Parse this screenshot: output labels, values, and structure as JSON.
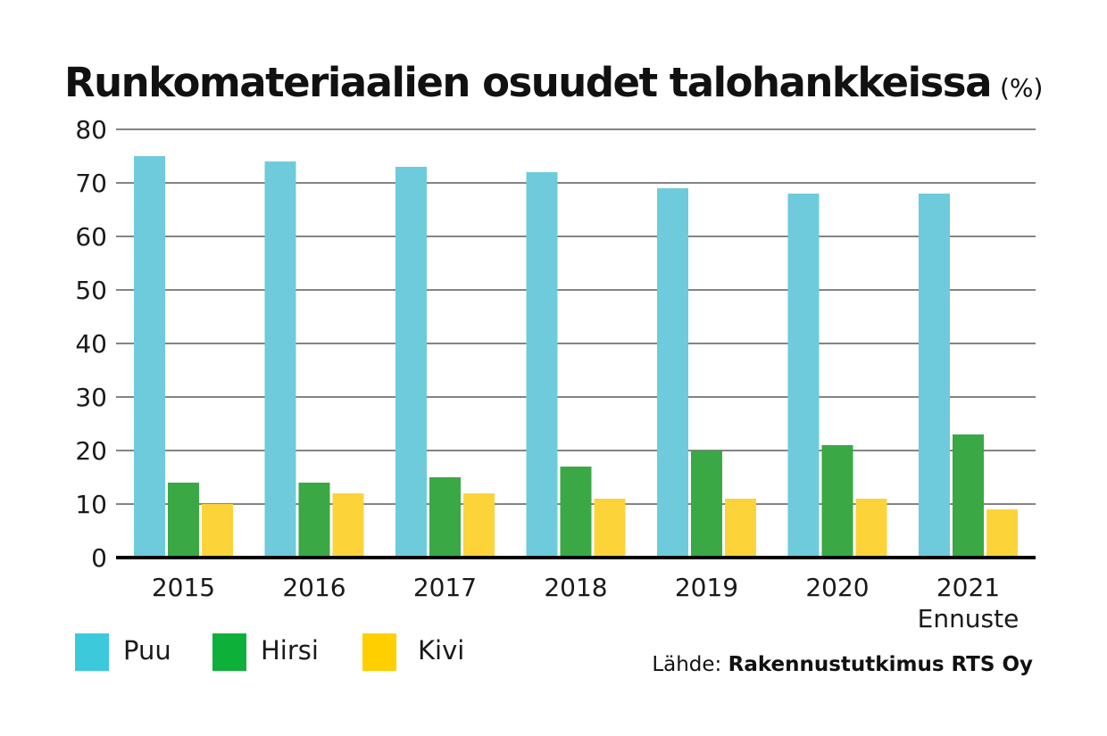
{
  "title": "Runkomateriaalien osuudet talohankkeissa",
  "title_unit": "(%)",
  "chart_data": {
    "type": "bar",
    "categories": [
      "2015",
      "2016",
      "2017",
      "2018",
      "2019",
      "2020",
      "2021"
    ],
    "category_sublabels": [
      "",
      "",
      "",
      "",
      "",
      "",
      "Ennuste"
    ],
    "series": [
      {
        "name": "Puu",
        "color": "#6ecbdc",
        "values": [
          75,
          74,
          73,
          72,
          69,
          68,
          68
        ]
      },
      {
        "name": "Hirsi",
        "color": "#3aa845",
        "values": [
          14,
          14,
          15,
          17,
          20,
          21,
          23
        ]
      },
      {
        "name": "Kivi",
        "color": "#fdd33a",
        "values": [
          10,
          12,
          12,
          11,
          11,
          11,
          9
        ]
      }
    ],
    "ylim": [
      0,
      80
    ],
    "yticks": [
      "0",
      "10",
      "20",
      "30",
      "40",
      "50",
      "60",
      "70",
      "80"
    ],
    "grid": true,
    "legend_position": "bottom-left"
  },
  "legend": [
    {
      "label": "Puu",
      "color": "#3cc9dc"
    },
    {
      "label": "Hirsi",
      "color": "#0db039"
    },
    {
      "label": "Kivi",
      "color": "#ffcf00"
    }
  ],
  "source": {
    "prefix": "Lähde:",
    "name": "Rakennustutkimus RTS Oy"
  }
}
